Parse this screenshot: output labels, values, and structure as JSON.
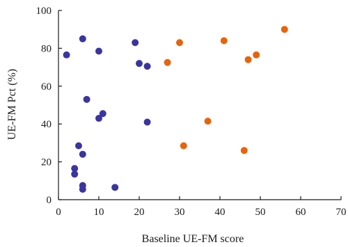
{
  "chart_data": {
    "type": "scatter",
    "xlabel": "Baseline UE-FM score",
    "ylabel": "UE-FM Pct (%)",
    "xlim": [
      0,
      70
    ],
    "ylim": [
      0,
      100
    ],
    "xticks": [
      "0",
      "10",
      "20",
      "30",
      "40",
      "50",
      "60",
      "70"
    ],
    "yticks": [
      "0",
      "20",
      "40",
      "60",
      "80",
      "100"
    ],
    "grid": false,
    "series": [
      {
        "color": "#3a35a0",
        "points": [
          {
            "x": 2,
            "y": 76.5
          },
          {
            "x": 6,
            "y": 85
          },
          {
            "x": 10,
            "y": 78.5
          },
          {
            "x": 19,
            "y": 83
          },
          {
            "x": 20,
            "y": 72
          },
          {
            "x": 22,
            "y": 70.5
          },
          {
            "x": 7,
            "y": 53
          },
          {
            "x": 10,
            "y": 43
          },
          {
            "x": 11,
            "y": 45.5
          },
          {
            "x": 22,
            "y": 41
          },
          {
            "x": 5,
            "y": 28.5
          },
          {
            "x": 6,
            "y": 24
          },
          {
            "x": 4,
            "y": 16.5
          },
          {
            "x": 4,
            "y": 13.5
          },
          {
            "x": 6,
            "y": 7.5
          },
          {
            "x": 6,
            "y": 5.5
          },
          {
            "x": 14,
            "y": 6.5
          }
        ]
      },
      {
        "color": "#e8630a",
        "points": [
          {
            "x": 27,
            "y": 72.5
          },
          {
            "x": 30,
            "y": 83
          },
          {
            "x": 41,
            "y": 84
          },
          {
            "x": 47,
            "y": 74
          },
          {
            "x": 49,
            "y": 76.5
          },
          {
            "x": 56,
            "y": 90
          },
          {
            "x": 37,
            "y": 41.5
          },
          {
            "x": 31,
            "y": 28.5
          },
          {
            "x": 46,
            "y": 26
          }
        ]
      }
    ]
  }
}
